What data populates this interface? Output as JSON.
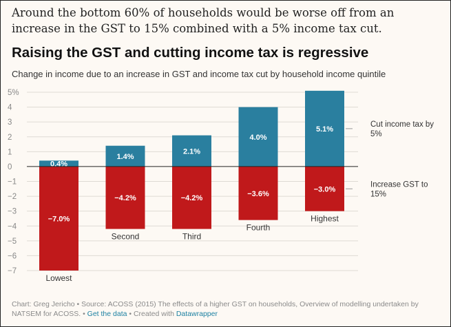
{
  "intro": "Around the bottom 60% of households would be worse off from an increase in the GST to 15% combined with a 5% income tax cut.",
  "chart_data": {
    "type": "bar",
    "title": "Raising the GST and cutting income tax is regressive",
    "subtitle": "Change in income due to an increase in GST and income tax cut by household income quintile",
    "categories": [
      "Lowest",
      "Second",
      "Third",
      "Fourth",
      "Highest"
    ],
    "series": [
      {
        "name": "Cut income tax by 5%",
        "values": [
          0.4,
          1.4,
          2.1,
          4.0,
          5.1
        ],
        "color": "#2a7f9f"
      },
      {
        "name": "Increase GST to 15%",
        "values": [
          -7.0,
          -4.2,
          -4.2,
          -3.6,
          -3.0
        ],
        "color": "#c0191b"
      }
    ],
    "value_labels": [
      [
        "0.4%",
        "1.4%",
        "2.1%",
        "4.0%",
        "5.1%"
      ],
      [
        "−7.0%",
        "−4.2%",
        "−4.2%",
        "−3.6%",
        "−3.0%"
      ]
    ],
    "yticks": [
      "5%",
      "4",
      "3",
      "2",
      "1",
      "0",
      "−1",
      "−2",
      "−3",
      "−4",
      "−5",
      "−6",
      "−7"
    ],
    "ylim": [
      -7,
      5
    ],
    "grid": true,
    "legend_position": "right"
  },
  "footer": {
    "credit": "Chart: Greg Jericho • Source: ACOSS (2015) The effects of a higher GST on households, Overview of modelling undertaken by NATSEM for ACOSS. • ",
    "get_data": "Get the data",
    "created_with": " • Created with ",
    "datawrapper": "Datawrapper"
  }
}
